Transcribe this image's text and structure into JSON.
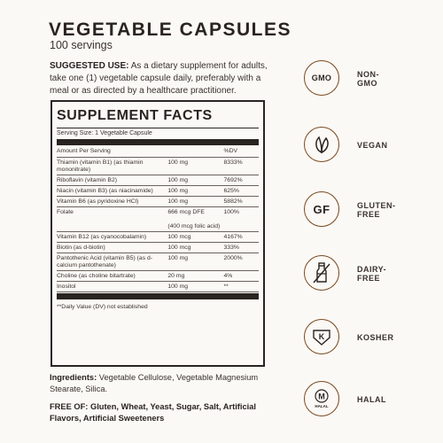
{
  "header": {
    "title": "VEGETABLE CAPSULES",
    "servings": "100 servings"
  },
  "suggested_use": {
    "label": "SUGGESTED USE:",
    "text": " As a dietary supplement for adults, take one (1) vegetable capsule daily, preferably with a meal or as directed by a healthcare practitioner."
  },
  "supplement_facts": {
    "title": "SUPPLEMENT FACTS",
    "serving_size": "Serving Size: 1 Vegetable Capsule",
    "columns": {
      "name": "Amount Per Serving",
      "amount": "",
      "dv": "%DV"
    },
    "rows": [
      {
        "name": "Thiamin (vitamin B1) (as thiamin mononitrate)",
        "amount": "100 mg",
        "dv": "8333%"
      },
      {
        "name": "Riboflavin (vitamin B2)",
        "amount": "100 mg",
        "dv": "7692%"
      },
      {
        "name": "Niacin (vitamin B3) (as niacinamide)",
        "amount": "100 mg",
        "dv": "625%"
      },
      {
        "name": "Vitamin B6 (as pyridoxine HCl)",
        "amount": "100 mg",
        "dv": "5882%"
      },
      {
        "name": "Folate",
        "amount": "666 mcg DFE\n\n(400 mcg folic acid)",
        "dv": "100%"
      },
      {
        "name": "Vitamin B12 (as cyanocobalamin)",
        "amount": "100 mcg",
        "dv": "4167%"
      },
      {
        "name": "Biotin (as d-biotin)",
        "amount": "100 mcg",
        "dv": "333%"
      },
      {
        "name": "Pantothenic Acid (vitamin B5) (as d-calcium pantothenate)",
        "amount": "100 mg",
        "dv": "2000%"
      },
      {
        "name": "Choline (as choline bitartrate)",
        "amount": "20 mg",
        "dv": "4%"
      },
      {
        "name": "Inositol",
        "amount": "100 mg",
        "dv": "**"
      }
    ],
    "footnote": "**Daily Value (DV) not established"
  },
  "ingredients": {
    "label": "Ingredients:",
    "text": " Vegetable Cellulose, Vegetable Magnesium Stearate, Silica."
  },
  "free_of": {
    "text": "FREE OF: Gluten, Wheat, Yeast, Sugar, Salt, Artificial Flavors, Artificial Sweeteners"
  },
  "badges": [
    {
      "icon": "non-gmo-icon",
      "line1": "NON-",
      "line2": "GMO",
      "symbol": "GMO"
    },
    {
      "icon": "vegan-leaf-icon",
      "line1": "VEGAN",
      "line2": ""
    },
    {
      "icon": "gluten-free-icon",
      "line1": "GLUTEN-",
      "line2": "FREE",
      "symbol": "GF"
    },
    {
      "icon": "dairy-free-bottle-icon",
      "line1": "DAIRY-",
      "line2": "FREE"
    },
    {
      "icon": "kosher-icon",
      "line1": "KOSHER",
      "line2": "",
      "symbol": "K"
    },
    {
      "icon": "halal-icon",
      "line1": "HALAL",
      "line2": "",
      "symbol": "M",
      "seal_text": "HALAL"
    }
  ],
  "colors": {
    "text": "#2a2421",
    "icon_brown": "#7a4a1e",
    "background": "#fbf9f6"
  }
}
